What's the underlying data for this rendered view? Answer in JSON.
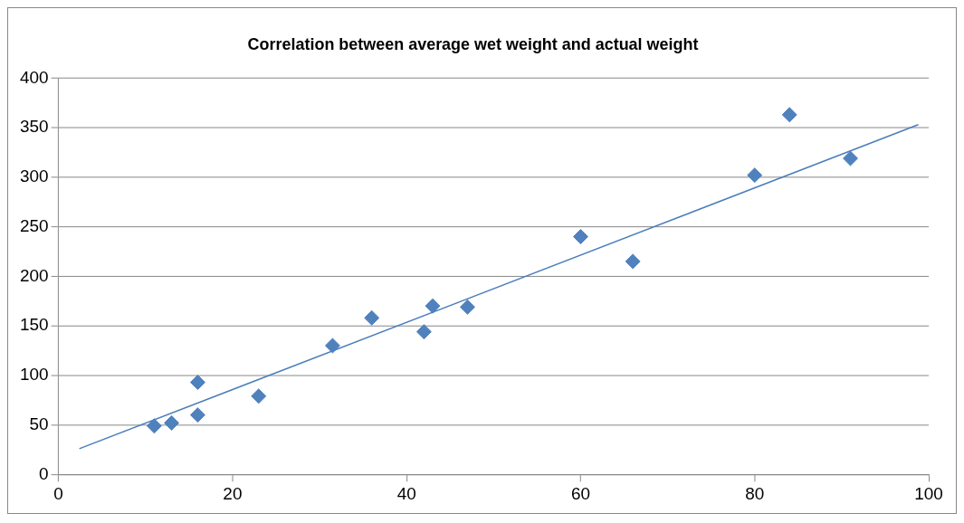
{
  "chart_data": {
    "type": "scatter",
    "title": "Correlation between average wet weight and actual weight",
    "series": [
      {
        "type": "scatter",
        "color": "#4f81bd",
        "marker": "diamond",
        "x": [
          11,
          13,
          16,
          16,
          23,
          31.5,
          36,
          42,
          43,
          47,
          60,
          66,
          80,
          84,
          91
        ],
        "values": [
          49,
          52,
          93,
          60,
          79,
          130,
          158,
          144,
          170,
          169,
          240,
          215,
          302,
          363,
          319
        ]
      },
      {
        "type": "line",
        "color": "#4a7ebb",
        "marker": "none",
        "x": [
          2.4,
          98.8
        ],
        "values": [
          26,
          353
        ]
      }
    ],
    "xlim": [
      0,
      100
    ],
    "xticks": [
      0,
      20,
      40,
      60,
      80,
      100
    ],
    "ylim": [
      0,
      400
    ],
    "yticks": [
      0,
      50,
      100,
      150,
      200,
      250,
      300,
      350,
      400
    ],
    "grid": "y",
    "legend": false
  }
}
